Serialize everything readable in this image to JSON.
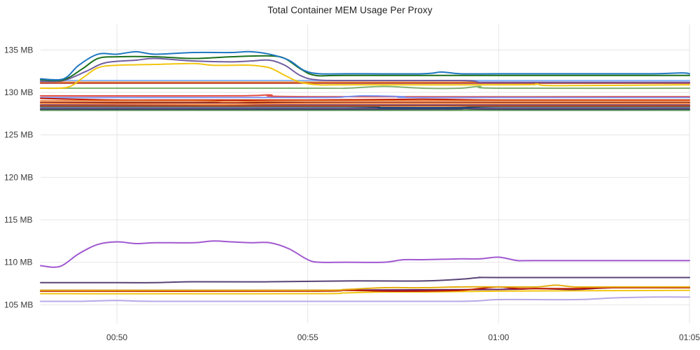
{
  "chart_data": {
    "type": "line",
    "title": "Total Container MEM Usage Per Proxy",
    "xlabel": "",
    "ylabel": "",
    "x_range_minutes": [
      -2,
      15
    ],
    "ylim": [
      102.8,
      138
    ],
    "yticks": [
      {
        "value": 105,
        "label": "105 MB"
      },
      {
        "value": 110,
        "label": "110 MB"
      },
      {
        "value": 115,
        "label": "115 MB"
      },
      {
        "value": 120,
        "label": "120 MB"
      },
      {
        "value": 125,
        "label": "125 MB"
      },
      {
        "value": 130,
        "label": "130 MB"
      },
      {
        "value": 135,
        "label": "135 MB"
      }
    ],
    "xticks": [
      {
        "value": 0,
        "label": "00:50"
      },
      {
        "value": 5,
        "label": "00:55"
      },
      {
        "value": 10,
        "label": "01:00"
      },
      {
        "value": 15,
        "label": "01:05"
      }
    ],
    "grid": true,
    "legend": "none",
    "series": [
      {
        "color": "#1f78c1",
        "points": [
          [
            -2,
            131.6
          ],
          [
            -1.4,
            131.6
          ],
          [
            -1,
            133.2
          ],
          [
            -0.5,
            134.5
          ],
          [
            0,
            134.5
          ],
          [
            0.5,
            134.8
          ],
          [
            1,
            134.5
          ],
          [
            2,
            134.7
          ],
          [
            3,
            134.7
          ],
          [
            3.5,
            134.8
          ],
          [
            4,
            134.5
          ],
          [
            4.5,
            133.8
          ],
          [
            4.9,
            132.6
          ],
          [
            5.3,
            132.2
          ],
          [
            6,
            132.2
          ],
          [
            8,
            132.2
          ],
          [
            8.5,
            132.4
          ],
          [
            9,
            132.2
          ],
          [
            10,
            132.2
          ],
          [
            12,
            132.2
          ],
          [
            14,
            132.2
          ],
          [
            14.8,
            132.3
          ],
          [
            15,
            132.2
          ]
        ]
      },
      {
        "color": "#1b6f1b",
        "points": [
          [
            -2,
            131.5
          ],
          [
            -1.4,
            131.5
          ],
          [
            -0.9,
            132.8
          ],
          [
            -0.5,
            134.0
          ],
          [
            0,
            134.2
          ],
          [
            1,
            134.2
          ],
          [
            2,
            134.0
          ],
          [
            3,
            134.2
          ],
          [
            4,
            134.3
          ],
          [
            4.4,
            134.0
          ],
          [
            4.8,
            132.8
          ],
          [
            5.2,
            132.0
          ],
          [
            6,
            132.0
          ],
          [
            10,
            132.0
          ],
          [
            15,
            132.0
          ]
        ]
      },
      {
        "color": "#705da0",
        "points": [
          [
            -2,
            131.3
          ],
          [
            -1.4,
            131.4
          ],
          [
            -0.8,
            132.5
          ],
          [
            -0.3,
            133.5
          ],
          [
            0.5,
            133.8
          ],
          [
            1,
            134.0
          ],
          [
            2,
            133.7
          ],
          [
            3,
            133.6
          ],
          [
            3.5,
            133.7
          ],
          [
            4,
            133.8
          ],
          [
            4.4,
            133.2
          ],
          [
            4.8,
            132.0
          ],
          [
            5.2,
            131.5
          ],
          [
            6,
            131.4
          ],
          [
            9,
            131.4
          ],
          [
            9.5,
            131.2
          ],
          [
            10,
            131.2
          ],
          [
            15,
            131.2
          ]
        ]
      },
      {
        "color": "#f2c611",
        "points": [
          [
            -2,
            130.5
          ],
          [
            -1.3,
            130.6
          ],
          [
            -0.9,
            131.7
          ],
          [
            -0.5,
            132.9
          ],
          [
            0,
            133.2
          ],
          [
            1,
            133.3
          ],
          [
            2,
            133.4
          ],
          [
            2.5,
            133.2
          ],
          [
            3,
            133.2
          ],
          [
            3.5,
            133.2
          ],
          [
            4,
            132.9
          ],
          [
            4.4,
            132.0
          ],
          [
            4.8,
            131.2
          ],
          [
            5.3,
            130.9
          ],
          [
            6,
            130.9
          ],
          [
            10.5,
            130.9
          ],
          [
            11,
            131.0
          ],
          [
            11.5,
            130.8
          ],
          [
            15,
            130.9
          ]
        ]
      },
      {
        "color": "#8ab8ff",
        "points": [
          [
            -2,
            131.4
          ],
          [
            15,
            131.4
          ]
        ]
      },
      {
        "color": "#e0752d",
        "points": [
          [
            -2,
            131.2
          ],
          [
            15,
            131.2
          ]
        ]
      },
      {
        "color": "#b02c2c",
        "points": [
          [
            -2,
            131.1
          ],
          [
            15,
            131.1
          ]
        ]
      },
      {
        "color": "#7eb26d",
        "points": [
          [
            -2,
            130.5
          ],
          [
            5,
            130.5
          ],
          [
            6,
            130.5
          ],
          [
            7,
            130.7
          ],
          [
            8,
            130.5
          ],
          [
            9,
            130.5
          ],
          [
            9.5,
            130.7
          ],
          [
            10,
            130.5
          ],
          [
            15,
            130.5
          ]
        ]
      },
      {
        "color": "#ef843c",
        "points": [
          [
            -2,
            129.0
          ],
          [
            2,
            129.0
          ],
          [
            3,
            128.9
          ],
          [
            5,
            129.0
          ],
          [
            15,
            129.0
          ]
        ]
      },
      {
        "color": "#bf1b00",
        "points": [
          [
            -2,
            129.3
          ],
          [
            0,
            129.1
          ],
          [
            2,
            129.1
          ],
          [
            5,
            129.1
          ],
          [
            8,
            129.2
          ],
          [
            10,
            129.1
          ],
          [
            15,
            129.1
          ]
        ]
      },
      {
        "color": "#7b8ef0",
        "points": [
          [
            -2,
            129.4
          ],
          [
            5,
            129.4
          ],
          [
            6,
            129.5
          ],
          [
            6.5,
            129.6
          ],
          [
            7.5,
            129.5
          ],
          [
            8,
            129.4
          ],
          [
            15,
            129.4
          ]
        ]
      },
      {
        "color": "#f9934e",
        "points": [
          [
            -2,
            128.7
          ],
          [
            2,
            128.6
          ],
          [
            3,
            128.6
          ],
          [
            5,
            128.7
          ],
          [
            10,
            128.7
          ],
          [
            15,
            128.7
          ]
        ]
      },
      {
        "color": "#e24d42",
        "points": [
          [
            -2,
            129.6
          ],
          [
            3,
            129.6
          ],
          [
            4,
            129.7
          ],
          [
            5,
            129.5
          ],
          [
            15,
            129.5
          ]
        ]
      },
      {
        "color": "#c15c17",
        "points": [
          [
            -2,
            128.4
          ],
          [
            15,
            128.4
          ]
        ]
      },
      {
        "color": "#890f02",
        "points": [
          [
            -2,
            128.8
          ],
          [
            15,
            128.8
          ]
        ]
      },
      {
        "color": "#0a437c",
        "points": [
          [
            -2,
            128.3
          ],
          [
            6,
            128.3
          ],
          [
            7,
            128.2
          ],
          [
            9,
            128.2
          ],
          [
            10,
            128.3
          ],
          [
            15,
            128.3
          ]
        ]
      },
      {
        "color": "#6d1f62",
        "points": [
          [
            -2,
            128.5
          ],
          [
            15,
            128.5
          ]
        ]
      },
      {
        "color": "#584477",
        "points": [
          [
            -2,
            128.1
          ],
          [
            15,
            128.1
          ]
        ]
      },
      {
        "color": "#2f575e",
        "points": [
          [
            -2,
            128.0
          ],
          [
            8,
            128.0
          ],
          [
            9,
            128.1
          ],
          [
            10,
            128.0
          ],
          [
            15,
            128.0
          ]
        ]
      },
      {
        "color": "#629e51",
        "points": [
          [
            -2,
            127.9
          ],
          [
            15,
            127.9
          ]
        ]
      },
      {
        "color": "#badff4",
        "points": [
          [
            -2,
            128.6
          ],
          [
            15,
            128.6
          ]
        ]
      },
      {
        "color": "#a058d0",
        "points": [
          [
            -2,
            109.6
          ],
          [
            -1.5,
            109.5
          ],
          [
            -1,
            111.0
          ],
          [
            -0.5,
            112.1
          ],
          [
            0,
            112.4
          ],
          [
            0.5,
            112.2
          ],
          [
            1,
            112.3
          ],
          [
            2,
            112.3
          ],
          [
            2.5,
            112.5
          ],
          [
            3,
            112.4
          ],
          [
            3.5,
            112.3
          ],
          [
            4,
            112.3
          ],
          [
            4.5,
            111.6
          ],
          [
            5,
            110.3
          ],
          [
            5.3,
            110.0
          ],
          [
            6,
            110.0
          ],
          [
            7,
            110.0
          ],
          [
            7.5,
            110.3
          ],
          [
            8,
            110.3
          ],
          [
            9,
            110.4
          ],
          [
            9.5,
            110.4
          ],
          [
            10,
            110.6
          ],
          [
            10.5,
            110.2
          ],
          [
            11,
            110.2
          ],
          [
            15,
            110.2
          ]
        ]
      },
      {
        "color": "#584477",
        "points": [
          [
            -2,
            107.6
          ],
          [
            0,
            107.6
          ],
          [
            1,
            107.6
          ],
          [
            2,
            107.7
          ],
          [
            4,
            107.7
          ],
          [
            6,
            107.8
          ],
          [
            8,
            107.8
          ],
          [
            9,
            108.0
          ],
          [
            9.5,
            108.2
          ],
          [
            10,
            108.2
          ],
          [
            15,
            108.2
          ]
        ]
      },
      {
        "color": "#e5ac0e",
        "points": [
          [
            -2,
            106.7
          ],
          [
            5,
            106.7
          ],
          [
            6,
            106.8
          ],
          [
            7,
            107.0
          ],
          [
            8,
            107.0
          ],
          [
            9,
            107.1
          ],
          [
            10,
            107.1
          ],
          [
            11,
            107.1
          ],
          [
            11.5,
            107.3
          ],
          [
            12,
            107.1
          ],
          [
            13,
            107.1
          ],
          [
            15,
            107.1
          ]
        ]
      },
      {
        "color": "#bf1b00",
        "points": [
          [
            -2,
            106.6
          ],
          [
            5,
            106.6
          ],
          [
            6,
            106.7
          ],
          [
            7,
            106.6
          ],
          [
            8,
            106.6
          ],
          [
            9,
            106.7
          ],
          [
            9.5,
            106.9
          ],
          [
            10,
            107.1
          ],
          [
            10.5,
            106.9
          ],
          [
            11,
            106.9
          ],
          [
            12,
            106.9
          ],
          [
            13,
            107.0
          ],
          [
            15,
            107.0
          ]
        ]
      },
      {
        "color": "#6d1f62",
        "points": [
          [
            -2,
            106.7
          ],
          [
            5,
            106.7
          ],
          [
            10,
            106.8
          ],
          [
            11,
            106.9
          ],
          [
            12,
            106.8
          ],
          [
            13,
            107.0
          ],
          [
            15,
            107.0
          ]
        ]
      },
      {
        "color": "#f2c611",
        "points": [
          [
            -2,
            106.3
          ],
          [
            5,
            106.3
          ],
          [
            6,
            106.4
          ],
          [
            7,
            106.5
          ],
          [
            8,
            106.5
          ],
          [
            10,
            106.6
          ],
          [
            15,
            106.7
          ]
        ]
      },
      {
        "color": "#b7a8e6",
        "points": [
          [
            -2,
            105.4
          ],
          [
            -1,
            105.4
          ],
          [
            0,
            105.5
          ],
          [
            1,
            105.4
          ],
          [
            5,
            105.4
          ],
          [
            9,
            105.4
          ],
          [
            10,
            105.6
          ],
          [
            12,
            105.6
          ],
          [
            13,
            105.8
          ],
          [
            14,
            105.9
          ],
          [
            15,
            105.9
          ]
        ]
      }
    ]
  }
}
